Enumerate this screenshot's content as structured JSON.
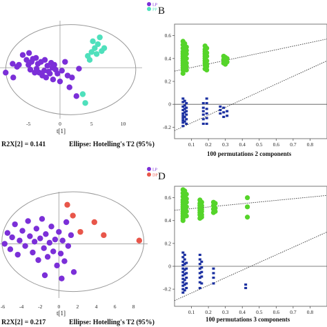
{
  "chart_data": [
    {
      "id": "A",
      "panel_label": "",
      "type": "scatter",
      "legend": [
        {
          "name": "LP",
          "color": "#7b2fd8"
        },
        {
          "name": "PP",
          "color": "#4fe0bc"
        }
      ],
      "legend_position": "top-right",
      "x_ticks": [
        -5,
        0,
        5,
        10
      ],
      "x_label": "t[1]",
      "footer_left": "R2X[2] = 0.141",
      "footer_right": "Ellipse: Hotelling's T2 (95%)",
      "xlim": [
        -9.5,
        13
      ],
      "ylim": [
        -5.2,
        4.8
      ],
      "ellipse": {
        "cx": 1.7,
        "cy": -0.2,
        "rx": 10.3,
        "ry": 4.6
      },
      "series": [
        {
          "name": "LP",
          "color": "#7b2fd8",
          "x": [
            -8.6,
            -7.5,
            -7.4,
            -6.8,
            -6.5,
            -5.9,
            -5.3,
            -5.0,
            -4.9,
            -4.7,
            -4.5,
            -4.3,
            -4.0,
            -3.8,
            -3.7,
            -3.5,
            -3.3,
            -3.0,
            -2.8,
            -2.5,
            -2.4,
            -2.2,
            -2.0,
            -1.8,
            -1.6,
            -1.4,
            -1.2,
            -1.1,
            -0.9,
            -0.7,
            -0.4,
            0.0,
            0.3,
            0.8,
            1.2,
            1.5,
            1.9,
            2.6,
            3.0
          ],
          "y": [
            -0.5,
            0.4,
            -1.0,
            0.1,
            0.3,
            1.3,
            0.8,
            0.3,
            1.5,
            -0.2,
            0.6,
            0.9,
            -0.5,
            1.0,
            -0.1,
            0.4,
            -0.5,
            0.6,
            -0.8,
            -0.3,
            0.8,
            -1.0,
            0.2,
            -0.4,
            -0.6,
            0.5,
            0.0,
            -1.2,
            0.3,
            -0.2,
            -0.6,
            -1.4,
            -0.3,
            0.6,
            -0.8,
            -2.0,
            -1.0,
            -2.9,
            -0.1
          ]
        },
        {
          "name": "PP",
          "color": "#4fe0bc",
          "x": [
            3.6,
            4.0,
            4.4,
            4.7,
            5.0,
            5.2,
            5.5,
            5.8,
            6.0,
            6.3,
            6.6,
            7.0
          ],
          "y": [
            -2.7,
            -3.6,
            1.2,
            0.8,
            1.6,
            2.7,
            2.0,
            1.4,
            2.4,
            3.1,
            1.7,
            2.0
          ]
        }
      ]
    },
    {
      "id": "B",
      "panel_label": "B",
      "type": "scatter",
      "y_ticks": [
        "0.6",
        "0.4",
        "0.2",
        "0",
        "-0.2"
      ],
      "x_ticks": [
        "0.1",
        "0.2",
        "0.3",
        "0.4",
        "0.5",
        "0.6",
        "0.7",
        "0.8"
      ],
      "x_label": "100 permutations 2 components",
      "xlim": [
        0,
        0.9
      ],
      "ylim": [
        -0.3,
        0.7
      ],
      "series": [
        {
          "name": "R2",
          "color": "#55d42a",
          "marker": "circle",
          "x": [
            0.05,
            0.05,
            0.05,
            0.05,
            0.05,
            0.05,
            0.05,
            0.05,
            0.05,
            0.05,
            0.05,
            0.05,
            0.05,
            0.06,
            0.06,
            0.06,
            0.06,
            0.06,
            0.06,
            0.06,
            0.06,
            0.06,
            0.07,
            0.07,
            0.07,
            0.07,
            0.07,
            0.07,
            0.07,
            0.18,
            0.18,
            0.18,
            0.18,
            0.18,
            0.18,
            0.18,
            0.18,
            0.18,
            0.18,
            0.19,
            0.19,
            0.19,
            0.19,
            0.19,
            0.19,
            0.19,
            0.29,
            0.29,
            0.29,
            0.3,
            0.3,
            0.3,
            0.31,
            0.31
          ],
          "y": [
            0.55,
            0.52,
            0.49,
            0.46,
            0.44,
            0.42,
            0.4,
            0.38,
            0.36,
            0.34,
            0.32,
            0.3,
            0.27,
            0.53,
            0.48,
            0.45,
            0.43,
            0.41,
            0.39,
            0.37,
            0.35,
            0.33,
            0.5,
            0.47,
            0.44,
            0.4,
            0.36,
            0.33,
            0.3,
            0.51,
            0.48,
            0.46,
            0.44,
            0.42,
            0.4,
            0.38,
            0.36,
            0.34,
            0.31,
            0.49,
            0.45,
            0.42,
            0.38,
            0.35,
            0.33,
            0.3,
            0.42,
            0.39,
            0.36,
            0.41,
            0.38,
            0.35,
            0.4,
            0.37
          ]
        },
        {
          "name": "Q2",
          "color": "#1a2fa0",
          "marker": "square",
          "x": [
            0.05,
            0.05,
            0.05,
            0.05,
            0.05,
            0.05,
            0.05,
            0.05,
            0.05,
            0.05,
            0.06,
            0.06,
            0.06,
            0.06,
            0.06,
            0.06,
            0.07,
            0.07,
            0.07,
            0.07,
            0.07,
            0.07,
            0.17,
            0.17,
            0.17,
            0.17,
            0.17,
            0.17,
            0.19,
            0.19,
            0.19,
            0.19,
            0.19,
            0.19,
            0.27,
            0.27,
            0.27,
            0.29,
            0.29,
            0.29,
            0.31,
            0.31
          ],
          "y": [
            0.05,
            0.02,
            -0.02,
            -0.05,
            -0.08,
            -0.1,
            -0.12,
            -0.14,
            -0.16,
            -0.19,
            0.03,
            -0.01,
            -0.04,
            -0.07,
            -0.11,
            -0.15,
            0.01,
            -0.03,
            -0.06,
            -0.09,
            -0.13,
            -0.17,
            0.01,
            -0.03,
            -0.06,
            -0.09,
            -0.13,
            -0.17,
            0.05,
            0.01,
            -0.04,
            -0.08,
            -0.12,
            -0.17,
            -0.02,
            -0.05,
            -0.08,
            -0.03,
            -0.07,
            -0.11,
            -0.06,
            -0.1
          ]
        }
      ],
      "trend_lines": [
        {
          "color": "#333333",
          "x": [
            0,
            0.9
          ],
          "y": [
            0.29,
            0.57
          ]
        },
        {
          "color": "#333333",
          "x": [
            0,
            0.9
          ],
          "y": [
            -0.23,
            0.38
          ]
        }
      ]
    },
    {
      "id": "C",
      "panel_label": "",
      "type": "scatter",
      "legend": [
        {
          "name": "LP",
          "color": "#7b2fd8"
        },
        {
          "name": "DP",
          "color": "#e8564a"
        }
      ],
      "legend_position": "top-right",
      "x_ticks": [
        -6,
        -4,
        -2,
        0,
        2,
        4,
        6,
        8
      ],
      "x_label": "t[1]",
      "footer_left": "R2X[2] = 0.217",
      "footer_right": "Ellipse: Hotelling's T2 (95%)",
      "xlim": [
        -6.3,
        9.5
      ],
      "ylim": [
        -5.0,
        4.8
      ],
      "ellipse": {
        "cx": 1.5,
        "cy": 0.2,
        "rx": 7.6,
        "ry": 4.6
      },
      "series": [
        {
          "name": "LP",
          "color": "#7b2fd8",
          "x": [
            -5.8,
            -5.5,
            -5.2,
            -5.0,
            -4.7,
            -4.4,
            -4.2,
            -3.9,
            -3.6,
            -3.3,
            -3.1,
            -2.8,
            -2.6,
            -2.4,
            -2.2,
            -2.0,
            -1.8,
            -1.6,
            -1.4,
            -1.2,
            -1.0,
            -0.8,
            -0.6,
            -0.4,
            -0.2,
            0.0,
            0.2,
            0.4,
            0.6,
            0.8,
            1.0,
            1.3,
            1.6,
            -1.5,
            0.3
          ],
          "y": [
            0.0,
            1.0,
            -0.5,
            0.6,
            1.8,
            -1.0,
            0.3,
            1.2,
            -0.2,
            2.1,
            0.7,
            -0.8,
            0.2,
            1.4,
            -1.5,
            0.5,
            2.3,
            -0.4,
            0.9,
            -1.2,
            0.1,
            1.6,
            -0.7,
            0.4,
            -2.0,
            1.1,
            -0.9,
            0.3,
            -1.6,
            2.0,
            -0.2,
            0.8,
            -2.6,
            -2.9,
            -3.2
          ]
        },
        {
          "name": "DP",
          "color": "#e8564a",
          "x": [
            1.5,
            2.3,
            3.8,
            4.8,
            8.6,
            0.9
          ],
          "y": [
            2.6,
            1.1,
            2.0,
            0.8,
            0.3,
            3.6
          ]
        }
      ]
    },
    {
      "id": "D",
      "panel_label": "D",
      "type": "scatter",
      "y_ticks": [
        "0.6",
        "0.4",
        "0.2",
        "0",
        "-0.2"
      ],
      "x_ticks": [
        "0.1",
        "0.2",
        "0.3",
        "0.4",
        "0.5",
        "0.6",
        "0.7",
        "0.8"
      ],
      "x_label": "100 permutations 3 components",
      "xlim": [
        0,
        0.9
      ],
      "ylim": [
        -0.35,
        0.7
      ],
      "series": [
        {
          "name": "R2",
          "color": "#55d42a",
          "marker": "circle",
          "x": [
            0.05,
            0.05,
            0.05,
            0.05,
            0.05,
            0.05,
            0.05,
            0.05,
            0.05,
            0.05,
            0.05,
            0.05,
            0.05,
            0.06,
            0.06,
            0.06,
            0.06,
            0.06,
            0.06,
            0.06,
            0.06,
            0.06,
            0.07,
            0.07,
            0.07,
            0.07,
            0.07,
            0.07,
            0.15,
            0.15,
            0.15,
            0.15,
            0.15,
            0.15,
            0.15,
            0.15,
            0.16,
            0.16,
            0.16,
            0.16,
            0.16,
            0.16,
            0.23,
            0.23,
            0.23,
            0.23,
            0.24,
            0.24,
            0.24,
            0.43,
            0.43,
            0.43
          ],
          "y": [
            0.67,
            0.64,
            0.61,
            0.58,
            0.56,
            0.54,
            0.52,
            0.5,
            0.48,
            0.46,
            0.44,
            0.42,
            0.4,
            0.66,
            0.62,
            0.59,
            0.57,
            0.55,
            0.53,
            0.51,
            0.49,
            0.46,
            0.63,
            0.59,
            0.56,
            0.52,
            0.48,
            0.44,
            0.58,
            0.55,
            0.53,
            0.51,
            0.49,
            0.47,
            0.45,
            0.42,
            0.56,
            0.53,
            0.5,
            0.48,
            0.45,
            0.43,
            0.56,
            0.53,
            0.5,
            0.47,
            0.55,
            0.51,
            0.48,
            0.6,
            0.52,
            0.43
          ]
        },
        {
          "name": "Q2",
          "color": "#1a2fa0",
          "marker": "square",
          "x": [
            0.05,
            0.05,
            0.05,
            0.05,
            0.05,
            0.05,
            0.05,
            0.05,
            0.05,
            0.05,
            0.05,
            0.05,
            0.06,
            0.06,
            0.06,
            0.06,
            0.06,
            0.06,
            0.06,
            0.06,
            0.07,
            0.07,
            0.07,
            0.07,
            0.07,
            0.07,
            0.15,
            0.15,
            0.15,
            0.15,
            0.15,
            0.15,
            0.15,
            0.15,
            0.16,
            0.16,
            0.16,
            0.16,
            0.16,
            0.23,
            0.23,
            0.23,
            0.23,
            0.42,
            0.42
          ],
          "y": [
            0.12,
            0.08,
            0.04,
            0.01,
            -0.02,
            -0.05,
            -0.08,
            -0.11,
            -0.14,
            -0.17,
            -0.2,
            -0.23,
            0.1,
            0.06,
            0.02,
            -0.03,
            -0.07,
            -0.12,
            -0.16,
            -0.21,
            0.03,
            -0.02,
            -0.06,
            -0.1,
            -0.15,
            -0.19,
            0.1,
            0.06,
            0.02,
            -0.02,
            -0.06,
            -0.1,
            -0.14,
            -0.19,
            0.04,
            -0.01,
            -0.05,
            -0.09,
            -0.15,
            -0.02,
            -0.06,
            -0.1,
            -0.15,
            -0.16,
            -0.19
          ]
        }
      ],
      "trend_lines": [
        {
          "color": "#333333",
          "x": [
            0,
            0.9
          ],
          "y": [
            0.49,
            0.62
          ]
        },
        {
          "color": "#333333",
          "x": [
            0,
            0.9
          ],
          "y": [
            -0.3,
            0.3
          ]
        }
      ]
    }
  ]
}
